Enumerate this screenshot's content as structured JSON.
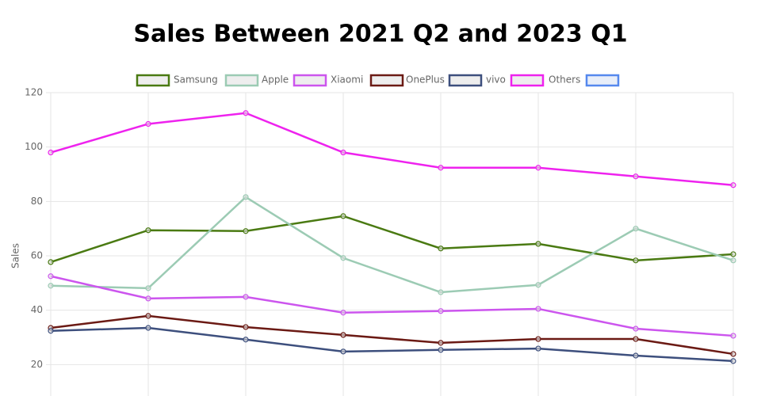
{
  "chart_data": {
    "type": "line",
    "title": "Sales Between 2021 Q2 and 2023 Q1",
    "y_label": "Sales",
    "categories": [
      null,
      null,
      null,
      null,
      null,
      null,
      null,
      null
    ],
    "series": [
      {
        "name": "Samsung",
        "color": "#4a7a12",
        "values": [
          57.7,
          69.4,
          69.1,
          74.6,
          62.7,
          64.4,
          58.3,
          60.6
        ]
      },
      {
        "name": "Apple",
        "color": "#9ccbb4",
        "values": [
          49,
          48.1,
          81.6,
          59.2,
          46.6,
          49.3,
          70.0,
          58.3
        ]
      },
      {
        "name": "Xiaomi",
        "color": "#cc55ee",
        "values": [
          52.5,
          44.3,
          44.9,
          39.1,
          39.7,
          40.5,
          33.2,
          30.6
        ]
      },
      {
        "name": "OnePlus",
        "color": "#6b1a14",
        "values": [
          33.5,
          37.9,
          33.8,
          30.9,
          28.0,
          29.4,
          29.4,
          23.9
        ]
      },
      {
        "name": "vivo",
        "color": "#3d4f7d",
        "values": [
          32.4,
          33.5,
          29.2,
          24.8,
          25.4,
          25.9,
          23.3,
          21.3
        ]
      },
      {
        "name": "Others",
        "color": "#ee22ee",
        "values": [
          98,
          108.5,
          112.5,
          98,
          92.4,
          92.4,
          89.2,
          86
        ]
      }
    ],
    "ylim": [
      0,
      120
    ],
    "yticks": [
      20,
      40,
      60,
      80,
      100,
      120
    ],
    "grid": true,
    "legend": "top"
  }
}
